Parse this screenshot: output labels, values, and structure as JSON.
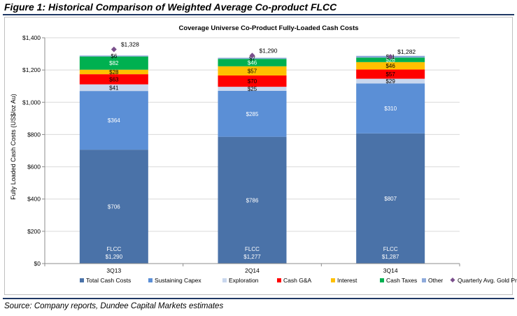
{
  "figure": {
    "title": "Figure 1: Historical Comparison of Weighted Average Co-product FLCC",
    "source": "Source: Company reports, Dundee Capital Markets estimates",
    "rule_color": "#1f3864"
  },
  "chart_data": {
    "type": "bar",
    "stacked": true,
    "title": "Coverage Universe Co-Product  Fully-Loaded Cash Costs",
    "xlabel": "",
    "ylabel": "Fully Loaded Cash Costs (US$/oz Au)",
    "ylim": [
      0,
      1400
    ],
    "yticks": [
      0,
      200,
      400,
      600,
      800,
      1000,
      1200,
      1400
    ],
    "ytick_labels": [
      "$0",
      "$200",
      "$400",
      "$600",
      "$800",
      "$1,000",
      "$1,200",
      "$1,400"
    ],
    "grid": true,
    "legend_position": "bottom",
    "categories": [
      "3Q13",
      "2Q14",
      "3Q14"
    ],
    "series": [
      {
        "name": "Total Cash Costs",
        "color": "#4a72a8",
        "values": [
          706,
          786,
          807
        ],
        "labels": [
          "$706",
          "$786",
          "$807"
        ]
      },
      {
        "name": "Sustaining Capex",
        "color": "#5b8fd6",
        "values": [
          364,
          285,
          310
        ],
        "labels": [
          "$364",
          "$285",
          "$310"
        ]
      },
      {
        "name": "Exploration",
        "color": "#c9d7ee",
        "values": [
          41,
          25,
          29
        ],
        "labels": [
          "$41",
          "$25",
          "$29"
        ]
      },
      {
        "name": "Cash G&A",
        "color": "#ff0000",
        "values": [
          63,
          70,
          57
        ],
        "labels": [
          "$63",
          "$70",
          "$57"
        ]
      },
      {
        "name": "Interest",
        "color": "#ffc000",
        "values": [
          28,
          57,
          46
        ],
        "labels": [
          "$28",
          "$57",
          "$46"
        ]
      },
      {
        "name": "Cash Taxes",
        "color": "#00b050",
        "values": [
          82,
          46,
          28
        ],
        "labels": [
          "$82",
          "$46",
          "$28"
        ]
      },
      {
        "name": "Other",
        "color": "#8eaadb",
        "values": [
          6,
          7,
          11
        ],
        "labels": [
          "$6",
          "$7",
          "$11"
        ]
      }
    ],
    "gold_price": {
      "name": "Quarterly Avg. Gold Price",
      "color": "#7a4f8c",
      "values": [
        1328,
        1290,
        1282
      ],
      "labels": [
        "$1,328",
        "$1,290",
        "$1,282"
      ]
    },
    "totals": {
      "prefix": "FLCC",
      "labels": [
        "$1,290",
        "$1,277",
        "$1,287"
      ]
    },
    "colors": {
      "grid": "#d9d9d9",
      "axis": "#8c8c8c"
    }
  }
}
